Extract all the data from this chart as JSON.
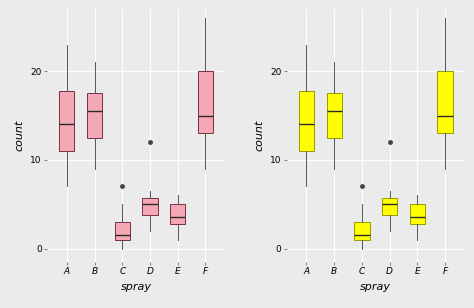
{
  "sprays": [
    "A",
    "B",
    "C",
    "D",
    "E",
    "F"
  ],
  "box_data": {
    "A": {
      "whislo": 7,
      "q1": 11,
      "med": 14,
      "q3": 17.75,
      "whishi": 23,
      "fliers": []
    },
    "B": {
      "whislo": 9,
      "q1": 12.5,
      "med": 15.5,
      "q3": 17.5,
      "whishi": 21,
      "fliers": []
    },
    "C": {
      "whislo": 0,
      "q1": 1,
      "med": 1.5,
      "q3": 3,
      "whishi": 5,
      "fliers": [
        7
      ]
    },
    "D": {
      "whislo": 2,
      "q1": 3.75,
      "med": 5,
      "q3": 5.75,
      "whishi": 6.5,
      "fliers": [
        12
      ]
    },
    "E": {
      "whislo": 1,
      "q1": 2.75,
      "med": 3.5,
      "q3": 5,
      "whishi": 6,
      "fliers": []
    },
    "F": {
      "whislo": 9,
      "q1": 13,
      "med": 15,
      "q3": 20,
      "whishi": 26,
      "fliers": []
    }
  },
  "color_left": "#F4A7B5",
  "color_right": "#FFFF00",
  "box_edge_color_left": "#7a3040",
  "box_edge_color_right": "#999900",
  "median_color": "#2a2a2a",
  "whisker_color": "#555555",
  "flier_color": "#444444",
  "background_color": "#EBEBEB",
  "grid_color": "#FFFFFF",
  "ylabel": "count",
  "xlabel": "spray",
  "ylim": [
    -1.5,
    27
  ],
  "yticks": [
    0,
    10,
    20
  ],
  "box_width": 0.55,
  "figsize": [
    4.74,
    3.08
  ],
  "dpi": 100
}
